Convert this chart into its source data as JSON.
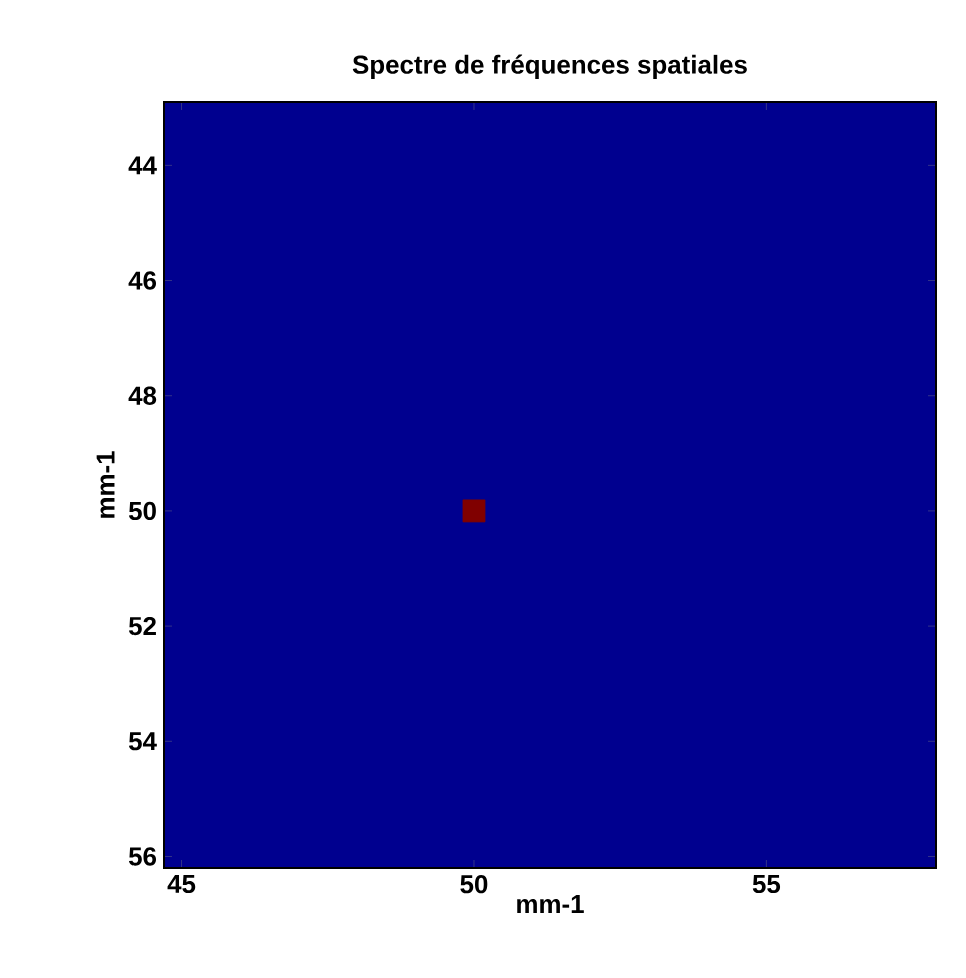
{
  "chart_data": {
    "type": "scatter",
    "title": "Spectre de fréquences spatiales",
    "xlabel": "mm-1",
    "ylabel": "mm-1",
    "x": [
      50
    ],
    "values": [
      50
    ],
    "color": "#800000",
    "marker": "square",
    "xlim": [
      44.7,
      57.9
    ],
    "ylim": [
      56.2,
      42.9
    ],
    "xticks": [
      45,
      50,
      55
    ],
    "yticks": [
      44,
      46,
      48,
      50,
      52,
      54,
      56
    ]
  }
}
